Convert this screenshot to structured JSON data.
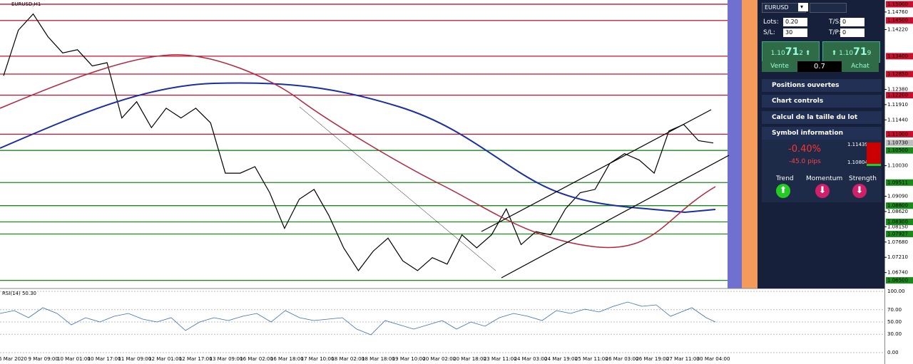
{
  "chart_header": "EURUSD,H1",
  "rsi_header": "RSI(14) 50.30",
  "price_lim": [
    1.0625,
    1.1513
  ],
  "price_ticks": [
    {
      "value": 1.1476,
      "label": "1.14760"
    },
    {
      "value": 1.1422,
      "label": "1.14220"
    },
    {
      "value": 1.1238,
      "label": "1.12380"
    },
    {
      "value": 1.1191,
      "label": "1.11910"
    },
    {
      "value": 1.1144,
      "label": "1.11440"
    },
    {
      "value": 1.1003,
      "label": "1.10030"
    },
    {
      "value": 1.0909,
      "label": "1.09090"
    },
    {
      "value": 1.0862,
      "label": "1.08620"
    },
    {
      "value": 1.0815,
      "label": "1.08150"
    },
    {
      "value": 1.0768,
      "label": "1.07680"
    },
    {
      "value": 1.0721,
      "label": "1.07210"
    },
    {
      "value": 1.0674,
      "label": "1.06740"
    }
  ],
  "resistance_levels": [
    {
      "value": 1.15,
      "label": "1.15000"
    },
    {
      "value": 1.145,
      "label": "1.14500"
    },
    {
      "value": 1.134,
      "label": "1.13400"
    },
    {
      "value": 1.1285,
      "label": "1.12850"
    },
    {
      "value": 1.122,
      "label": "1.12200"
    },
    {
      "value": 1.11,
      "label": "1.11000"
    }
  ],
  "support_levels": [
    {
      "value": 1.105,
      "label": "1.10500"
    },
    {
      "value": 1.09511,
      "label": "1.09511"
    },
    {
      "value": 1.088,
      "label": "1.08800"
    },
    {
      "value": 1.083,
      "label": "1.08300"
    },
    {
      "value": 1.07927,
      "label": "1.07927"
    },
    {
      "value": 1.065,
      "label": "1.06500"
    }
  ],
  "current_price": {
    "value": 1.1073,
    "label": "1.10730"
  },
  "close_prices": [
    1.128,
    1.142,
    1.147,
    1.14,
    1.135,
    1.136,
    1.131,
    1.132,
    1.115,
    1.12,
    1.112,
    1.118,
    1.115,
    1.118,
    1.1135,
    1.098,
    1.098,
    1.1,
    1.092,
    1.081,
    1.09,
    1.093,
    1.085,
    1.075,
    1.068,
    1.074,
    1.078,
    1.071,
    1.068,
    1.072,
    1.07,
    1.079,
    1.075,
    1.079,
    1.087,
    1.076,
    1.08,
    1.079,
    1.087,
    1.092,
    1.093,
    1.101,
    1.104,
    1.102,
    1.098,
    1.111,
    1.113,
    1.108,
    1.1073
  ],
  "rsi_lim": [
    0,
    100
  ],
  "rsi_ticks": [
    {
      "value": 100,
      "label": "100.00"
    },
    {
      "value": 70,
      "label": "70.00"
    },
    {
      "value": 50,
      "label": "50.00"
    },
    {
      "value": 30,
      "label": "30.00"
    },
    {
      "value": 0,
      "label": "0.00"
    }
  ],
  "time_labels": [
    "6 Mar 2020",
    "9 Mar 09:00",
    "10 Mar 01:00",
    "10 Mar 17:00",
    "11 Mar 09:00",
    "12 Mar 01:00",
    "12 Mar 17:00",
    "13 Mar 09:00",
    "16 Mar 02:00",
    "16 Mar 18:00",
    "17 Mar 10:00",
    "18 Mar 02:00",
    "18 Mar 18:00",
    "19 Mar 10:00",
    "20 Mar 02:00",
    "20 Mar 18:00",
    "23 Mar 11:00",
    "24 Mar 03:00",
    "24 Mar 19:00",
    "25 Mar 11:00",
    "26 Mar 03:00",
    "26 Mar 19:00",
    "27 Mar 11:00",
    "30 Mar 04:00"
  ],
  "panel": {
    "symbol": "EURUSD",
    "lots_label": "Lots:",
    "lots": "0.20",
    "ts_label": "T/S:",
    "ts": "0",
    "sl_label": "S/L:",
    "sl": "30",
    "tp_label": "T/P:",
    "tp": "0",
    "sell": {
      "prefix": "1.10",
      "big": "71",
      "suffix": "2",
      "label": "Vente"
    },
    "spread": "0.7",
    "buy": {
      "prefix": "1.10",
      "big": "71",
      "suffix": "9",
      "label": "Achat"
    },
    "sections": [
      "Positions ouvertes",
      "Chart controls",
      "Calcul de la taille du lot",
      "Symbol information"
    ],
    "change_pct": "-0.40%",
    "change_pips": "-45.0 pips",
    "high": "1.11439",
    "low": "1.10804",
    "indicators": [
      "Trend",
      "Momentum",
      "Strength"
    ]
  }
}
